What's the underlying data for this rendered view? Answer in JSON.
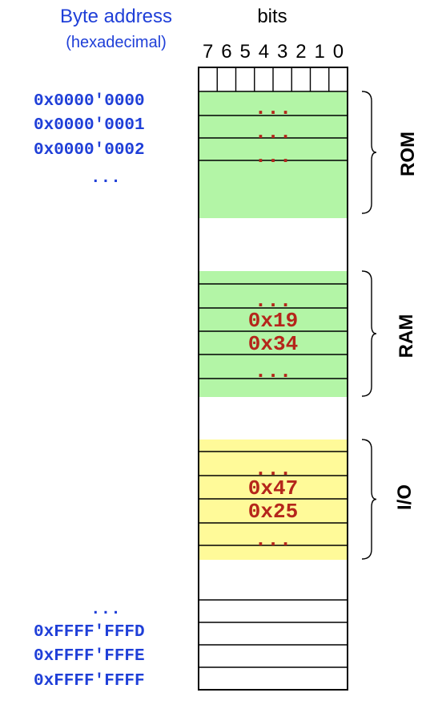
{
  "header": {
    "address_title": "Byte address",
    "address_subtitle": "(hexadecimal)",
    "bits_title": "bits",
    "bit_numbers": [
      "7",
      "6",
      "5",
      "4",
      "3",
      "2",
      "1",
      "0"
    ]
  },
  "addresses": {
    "top": [
      "0x0000'0000",
      "0x0000'0001",
      "0x0000'0002"
    ],
    "top_ellipsis": "...",
    "bottom_ellipsis": "...",
    "bottom": [
      "0xFFFF'FFFD",
      "0xFFFF'FFFE",
      "0xFFFF'FFFF"
    ]
  },
  "regions": {
    "rom": {
      "label": "ROM",
      "cells": [
        "...",
        "...",
        "..."
      ],
      "color": "#b3f5a6"
    },
    "ram": {
      "label": "RAM",
      "cells": [
        "...",
        "0x19",
        "0x34",
        "..."
      ],
      "color": "#b3f5a6"
    },
    "io": {
      "label": "I/O",
      "cells": [
        "...",
        "0x47",
        "0x25",
        "..."
      ],
      "color": "#fffa99"
    }
  }
}
